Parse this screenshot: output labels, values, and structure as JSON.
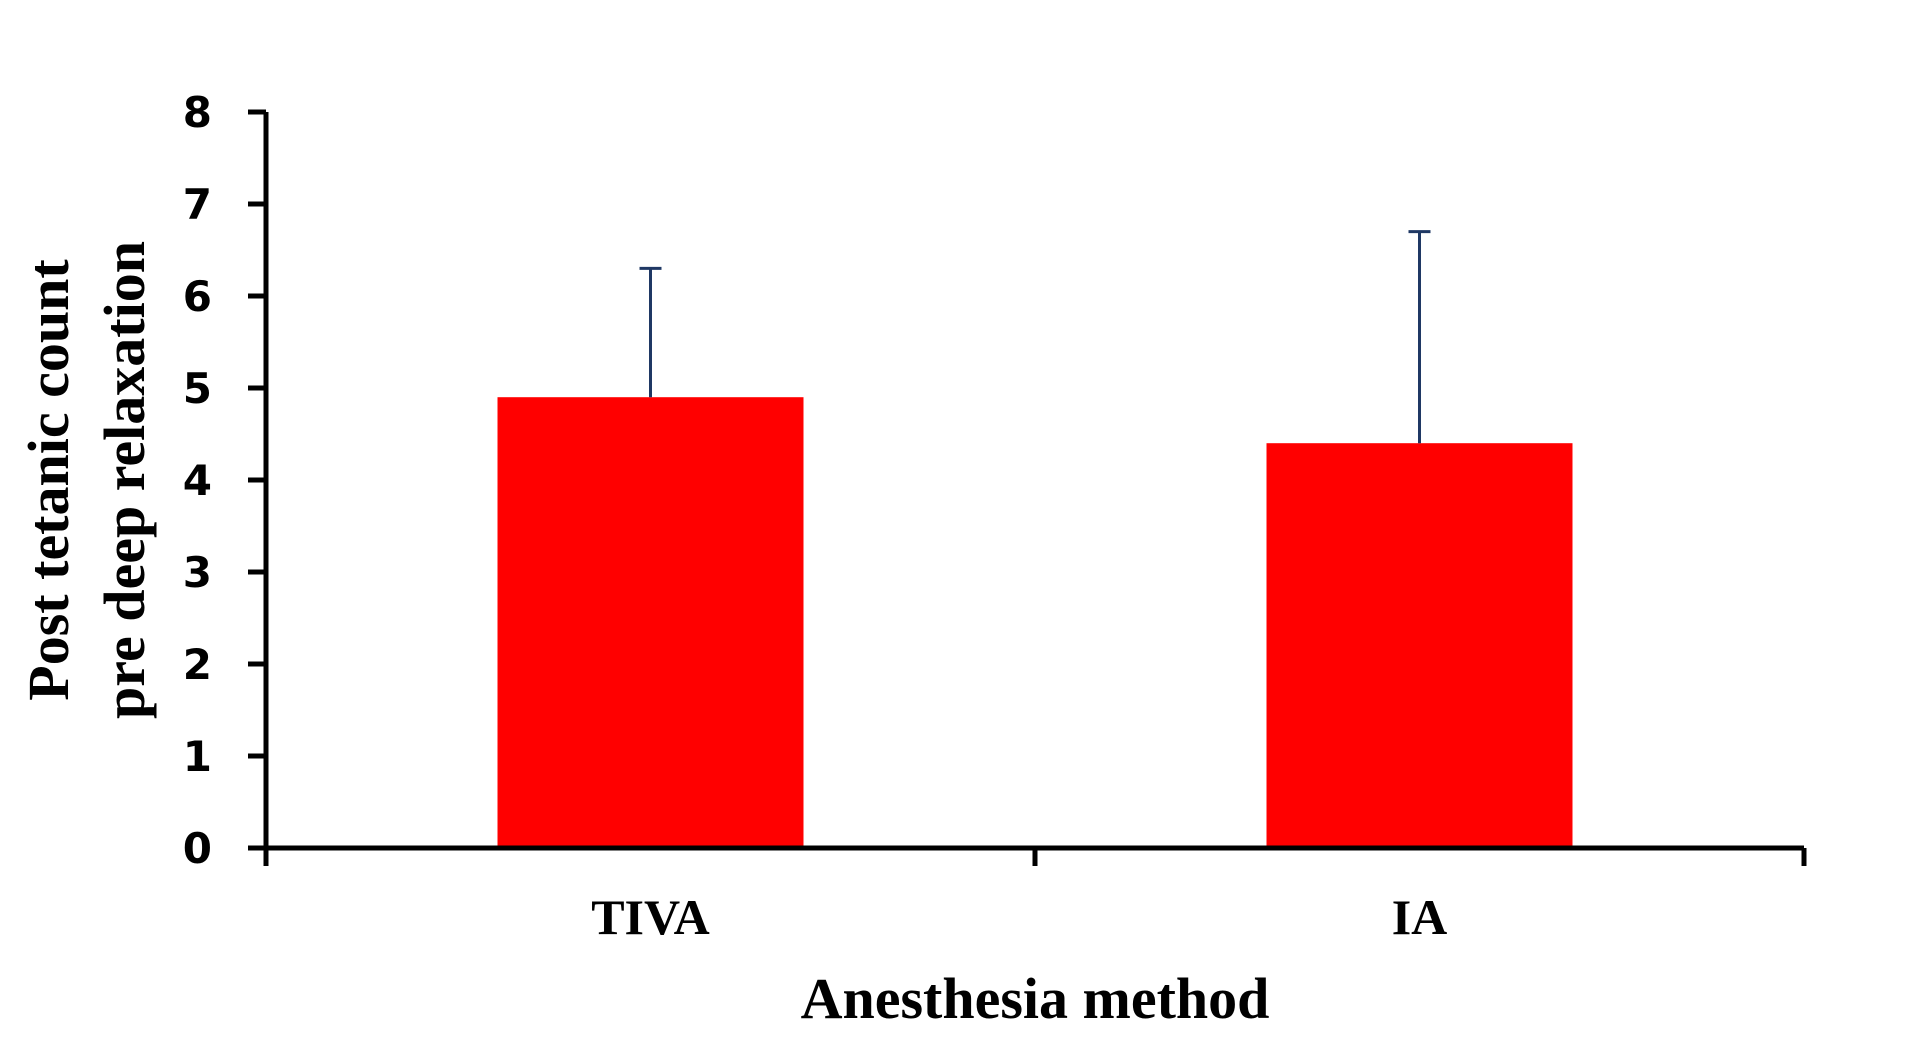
{
  "chart_data": {
    "type": "bar",
    "title": "",
    "categories": [
      "TIVA",
      "IA"
    ],
    "values": [
      4.9,
      4.4
    ],
    "error_upper": [
      6.3,
      6.7
    ],
    "xlabel": "Anesthesia method",
    "ylabel_lines": [
      "Post tetanic count",
      "pre deep relaxation"
    ],
    "ylim": [
      0,
      8
    ],
    "yticks": [
      "0",
      "1",
      "2",
      "3",
      "4",
      "5",
      "6",
      "7",
      "8"
    ],
    "grid": false,
    "bar_color": "#ff0000",
    "error_color": "#1f3864",
    "axis_color": "#000000"
  }
}
